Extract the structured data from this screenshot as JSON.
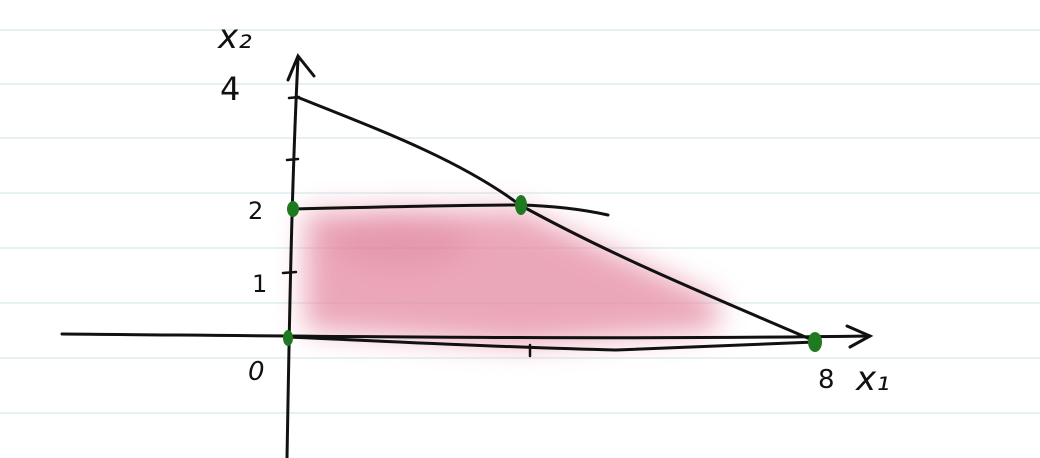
{
  "diagram": {
    "axis_labels": {
      "y": "x₂",
      "x": "x₁"
    },
    "y_tick_labels": [
      "4",
      "2",
      "1"
    ],
    "x_tick_labels": [
      "8"
    ],
    "origin_label": "0",
    "constraint_points": [
      {
        "x1": 0,
        "x2": 0
      },
      {
        "x1": 0,
        "x2": 2
      },
      {
        "x1": 4,
        "x2": 2
      },
      {
        "x1": 8,
        "x2": 0
      }
    ],
    "colors": {
      "ink": "#111111",
      "feasible_region": "#e58aa3",
      "vertex_marker": "#1f7a1f",
      "ruled_lines": "#cfe3e6"
    }
  }
}
